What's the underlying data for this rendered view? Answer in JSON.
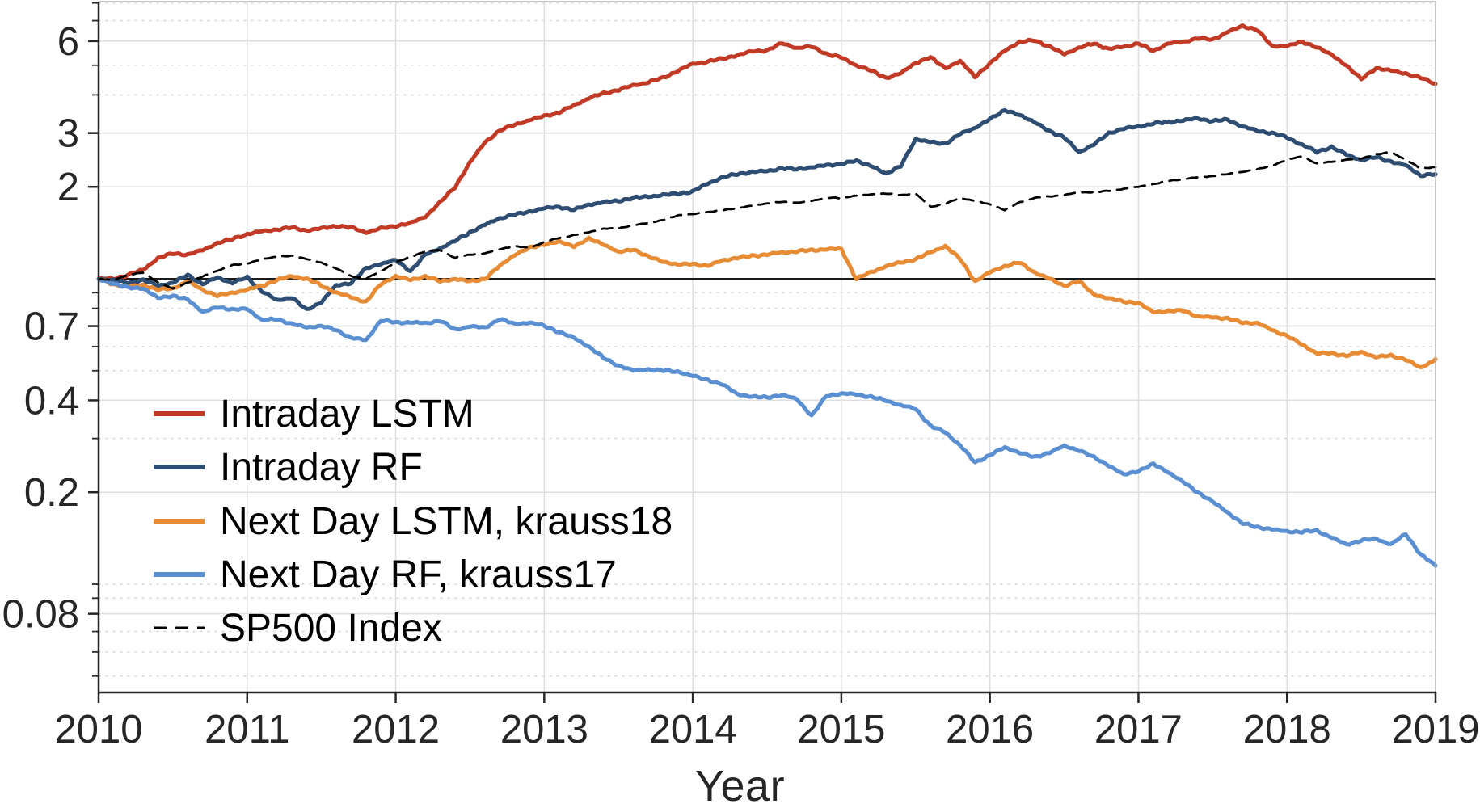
{
  "chart_data": {
    "type": "line",
    "title": "",
    "xlabel": "Year",
    "ylabel": "",
    "x_scale": "linear",
    "y_scale": "log",
    "xlim": [
      2010,
      2019
    ],
    "ylim": [
      0.044,
      8.05
    ],
    "x_ticks": [
      2010,
      2011,
      2012,
      2013,
      2014,
      2015,
      2016,
      2017,
      2018,
      2019
    ],
    "x_tick_labels": [
      "2010",
      "2011",
      "2012",
      "2013",
      "2014",
      "2015",
      "2016",
      "2017",
      "2018",
      "2019"
    ],
    "y_ticks": [
      6,
      3,
      2,
      0.7,
      0.4,
      0.2,
      0.08
    ],
    "y_tick_labels": [
      "6",
      "3",
      "2",
      "0.7",
      "0.4",
      "0.2",
      "0.08"
    ],
    "y_major_gridlines": [
      6,
      3,
      2,
      1,
      0.7,
      0.4,
      0.2,
      0.08
    ],
    "y_minor_gridlines": [
      8,
      7,
      5,
      4,
      0.9,
      0.8,
      0.6,
      0.5,
      0.3,
      0.1,
      0.09,
      0.07,
      0.06,
      0.05
    ],
    "reference_line_y": 1,
    "grid": "on",
    "legend_position": "lower-left",
    "legend_frame": "off",
    "x_start": 2010.0,
    "x_step": 0.1,
    "series": [
      {
        "name": "Intraday LSTM",
        "color": "#c13a26",
        "style": "solid",
        "end_value": 4.35,
        "values": [
          1.0,
          1.0,
          1.03,
          1.07,
          1.17,
          1.21,
          1.2,
          1.24,
          1.31,
          1.35,
          1.4,
          1.43,
          1.45,
          1.47,
          1.44,
          1.46,
          1.49,
          1.47,
          1.42,
          1.46,
          1.49,
          1.52,
          1.6,
          1.78,
          2.0,
          2.4,
          2.8,
          3.05,
          3.2,
          3.3,
          3.42,
          3.5,
          3.7,
          3.9,
          4.05,
          4.15,
          4.3,
          4.4,
          4.55,
          4.8,
          5.05,
          5.15,
          5.25,
          5.4,
          5.55,
          5.6,
          5.9,
          5.7,
          5.75,
          5.45,
          5.3,
          5.0,
          4.8,
          4.55,
          4.7,
          5.1,
          5.3,
          4.9,
          5.15,
          4.6,
          5.05,
          5.6,
          5.95,
          6.05,
          5.75,
          5.45,
          5.7,
          5.9,
          5.65,
          5.75,
          5.9,
          5.56,
          5.9,
          5.95,
          6.15,
          6.05,
          6.45,
          6.7,
          6.55,
          5.75,
          5.8,
          5.95,
          5.75,
          5.4,
          5.0,
          4.5,
          4.9,
          4.8,
          4.7,
          4.55,
          4.35
        ]
      },
      {
        "name": "Intraday RF",
        "color": "#2e4d73",
        "style": "solid",
        "end_value": 2.2,
        "values": [
          1.0,
          0.99,
          0.97,
          0.99,
          0.95,
          0.97,
          1.03,
          0.96,
          1.01,
          0.97,
          1.01,
          0.91,
          0.85,
          0.87,
          0.79,
          0.84,
          0.95,
          0.97,
          1.08,
          1.12,
          1.15,
          1.06,
          1.2,
          1.26,
          1.33,
          1.42,
          1.5,
          1.58,
          1.62,
          1.66,
          1.7,
          1.72,
          1.68,
          1.75,
          1.78,
          1.8,
          1.84,
          1.86,
          1.88,
          1.9,
          1.93,
          2.05,
          2.15,
          2.2,
          2.24,
          2.25,
          2.3,
          2.28,
          2.32,
          2.35,
          2.38,
          2.43,
          2.35,
          2.2,
          2.35,
          2.85,
          2.82,
          2.75,
          3.0,
          3.1,
          3.35,
          3.55,
          3.45,
          3.25,
          3.05,
          2.9,
          2.6,
          2.75,
          3.0,
          3.1,
          3.15,
          3.22,
          3.26,
          3.3,
          3.35,
          3.28,
          3.32,
          3.15,
          3.05,
          3.0,
          2.9,
          2.75,
          2.6,
          2.7,
          2.55,
          2.45,
          2.5,
          2.42,
          2.35,
          2.18,
          2.2
        ]
      },
      {
        "name": "Next Day LSTM, krauss18",
        "color": "#e78c35",
        "style": "solid",
        "end_value": 0.545,
        "values": [
          1.0,
          0.96,
          0.94,
          0.955,
          0.92,
          0.93,
          0.98,
          0.92,
          0.88,
          0.9,
          0.92,
          0.95,
          0.99,
          1.02,
          1.0,
          0.95,
          0.9,
          0.87,
          0.84,
          0.96,
          1.02,
          0.99,
          1.02,
          0.98,
          1.0,
          0.98,
          1.0,
          1.1,
          1.2,
          1.26,
          1.3,
          1.32,
          1.28,
          1.35,
          1.3,
          1.22,
          1.25,
          1.18,
          1.14,
          1.11,
          1.12,
          1.1,
          1.15,
          1.17,
          1.19,
          1.2,
          1.22,
          1.23,
          1.24,
          1.25,
          1.25,
          1.0,
          1.05,
          1.1,
          1.13,
          1.16,
          1.22,
          1.28,
          1.16,
          0.98,
          1.05,
          1.1,
          1.13,
          1.05,
          1.0,
          0.95,
          0.98,
          0.89,
          0.86,
          0.845,
          0.83,
          0.78,
          0.78,
          0.79,
          0.75,
          0.75,
          0.74,
          0.72,
          0.715,
          0.68,
          0.65,
          0.61,
          0.57,
          0.57,
          0.56,
          0.575,
          0.555,
          0.56,
          0.545,
          0.51,
          0.545
        ]
      },
      {
        "name": "Next Day RF, krauss17",
        "color": "#5a8fd1",
        "style": "solid",
        "end_value": 0.115,
        "values": [
          1.0,
          0.96,
          0.94,
          0.925,
          0.87,
          0.875,
          0.86,
          0.775,
          0.81,
          0.79,
          0.8,
          0.73,
          0.74,
          0.71,
          0.695,
          0.7,
          0.68,
          0.64,
          0.63,
          0.73,
          0.72,
          0.72,
          0.715,
          0.73,
          0.68,
          0.7,
          0.69,
          0.74,
          0.71,
          0.72,
          0.7,
          0.67,
          0.64,
          0.6,
          0.55,
          0.52,
          0.5,
          0.505,
          0.5,
          0.497,
          0.48,
          0.468,
          0.45,
          0.42,
          0.41,
          0.41,
          0.415,
          0.405,
          0.355,
          0.415,
          0.42,
          0.419,
          0.41,
          0.4,
          0.385,
          0.375,
          0.33,
          0.314,
          0.285,
          0.25,
          0.265,
          0.28,
          0.27,
          0.26,
          0.27,
          0.283,
          0.275,
          0.26,
          0.245,
          0.228,
          0.235,
          0.247,
          0.233,
          0.216,
          0.2,
          0.186,
          0.172,
          0.158,
          0.154,
          0.151,
          0.149,
          0.148,
          0.15,
          0.142,
          0.135,
          0.139,
          0.141,
          0.135,
          0.146,
          0.125,
          0.115
        ]
      },
      {
        "name": "SP500 Index",
        "color": "#000000",
        "style": "dashed",
        "end_value": 2.32,
        "values": [
          1.0,
          0.99,
          1.03,
          1.05,
          0.97,
          0.93,
          0.97,
          1.02,
          1.06,
          1.11,
          1.12,
          1.16,
          1.18,
          1.19,
          1.16,
          1.13,
          1.08,
          1.02,
          1.0,
          1.06,
          1.13,
          1.18,
          1.23,
          1.24,
          1.17,
          1.2,
          1.21,
          1.25,
          1.28,
          1.26,
          1.32,
          1.36,
          1.39,
          1.42,
          1.46,
          1.46,
          1.5,
          1.52,
          1.56,
          1.61,
          1.63,
          1.65,
          1.68,
          1.7,
          1.74,
          1.76,
          1.79,
          1.77,
          1.8,
          1.84,
          1.84,
          1.87,
          1.89,
          1.9,
          1.88,
          1.9,
          1.72,
          1.76,
          1.84,
          1.8,
          1.75,
          1.68,
          1.78,
          1.84,
          1.86,
          1.88,
          1.92,
          1.92,
          1.94,
          1.97,
          2.0,
          2.04,
          2.09,
          2.12,
          2.15,
          2.17,
          2.2,
          2.24,
          2.28,
          2.35,
          2.45,
          2.52,
          2.38,
          2.42,
          2.45,
          2.48,
          2.55,
          2.6,
          2.45,
          2.3,
          2.32
        ]
      }
    ],
    "colors": {
      "axis": "#262626",
      "box_top_right": "#b4b4b4",
      "grid_major": "#dedede",
      "grid_minor": "#d6d6d6",
      "reference_line": "#1a1a1a",
      "background": "#ffffff"
    }
  },
  "legend": {
    "items": [
      {
        "label": "Intraday LSTM"
      },
      {
        "label": "Intraday RF"
      },
      {
        "label": "Next Day LSTM, krauss18"
      },
      {
        "label": "Next Day RF, krauss17"
      },
      {
        "label": "SP500 Index"
      }
    ]
  }
}
